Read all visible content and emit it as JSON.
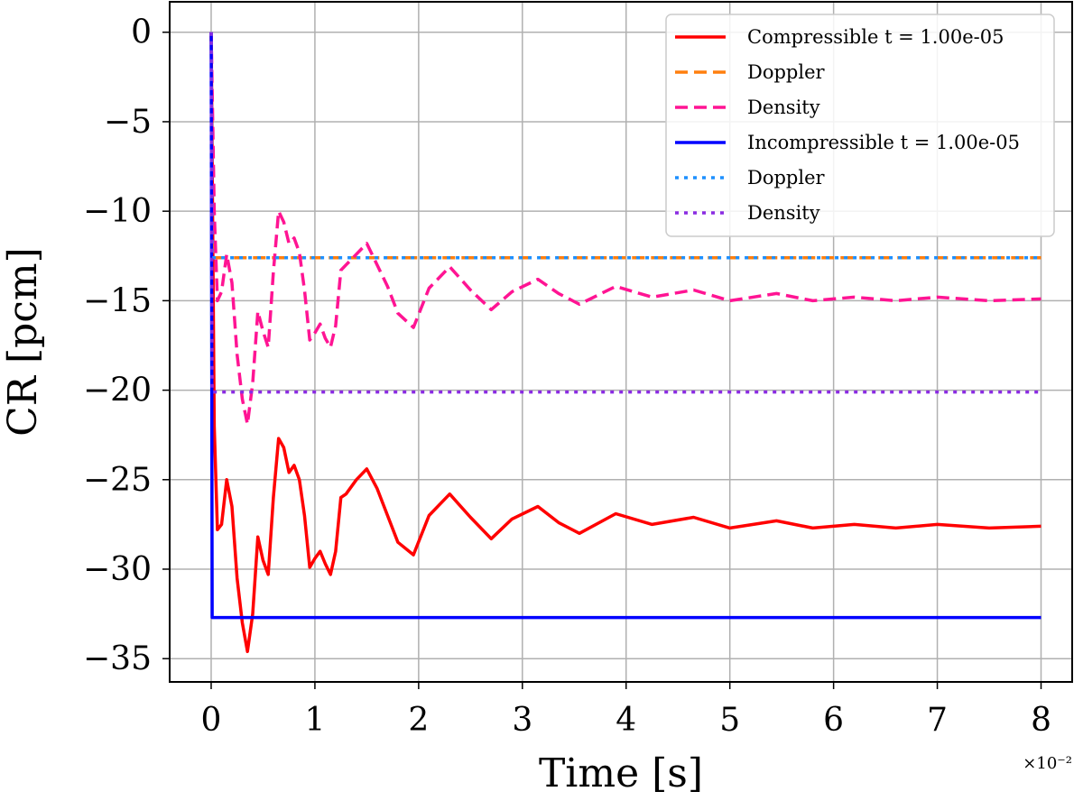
{
  "chart_data": {
    "type": "line",
    "title": "",
    "xlabel": "Time [s]",
    "ylabel": "CR [pcm]",
    "x_scale_note": "×10⁻²",
    "xlim": [
      -0.4,
      8.3
    ],
    "ylim": [
      -36.3,
      1.7
    ],
    "xticks": [
      0,
      1,
      2,
      3,
      4,
      5,
      6,
      7,
      8
    ],
    "xtick_labels": [
      "0",
      "1",
      "2",
      "3",
      "4",
      "5",
      "6",
      "7",
      "8"
    ],
    "yticks": [
      0,
      -5,
      -10,
      -15,
      -20,
      -25,
      -30,
      -35
    ],
    "ytick_labels": [
      "0",
      "−5",
      "−10",
      "−15",
      "−20",
      "−25",
      "−30",
      "−35"
    ],
    "grid": true,
    "legend_position": "top-right",
    "series": [
      {
        "name": "Compressible t = 1.00e-05",
        "color": "#ff0000",
        "style": "solid",
        "x": [
          0,
          0.03,
          0.06,
          0.1,
          0.15,
          0.2,
          0.25,
          0.3,
          0.35,
          0.4,
          0.45,
          0.5,
          0.55,
          0.6,
          0.65,
          0.7,
          0.75,
          0.8,
          0.85,
          0.9,
          0.95,
          1.0,
          1.05,
          1.1,
          1.15,
          1.2,
          1.25,
          1.3,
          1.4,
          1.5,
          1.6,
          1.7,
          1.8,
          1.95,
          2.1,
          2.3,
          2.5,
          2.7,
          2.9,
          3.15,
          3.35,
          3.55,
          3.9,
          4.25,
          4.65,
          5.0,
          5.45,
          5.8,
          6.2,
          6.6,
          7.0,
          7.5,
          8.0
        ],
        "y": [
          0,
          -22,
          -27.8,
          -27.5,
          -25.0,
          -26.5,
          -30.5,
          -33.0,
          -34.6,
          -32.5,
          -28.2,
          -29.5,
          -30.3,
          -26.0,
          -22.7,
          -23.2,
          -24.6,
          -24.2,
          -25.0,
          -27.0,
          -29.9,
          -29.4,
          -29.0,
          -29.7,
          -30.3,
          -29.0,
          -26.0,
          -25.8,
          -25.0,
          -24.4,
          -25.5,
          -27.0,
          -28.5,
          -29.2,
          -27.0,
          -25.8,
          -27.1,
          -28.3,
          -27.2,
          -26.5,
          -27.4,
          -28.0,
          -26.9,
          -27.5,
          -27.1,
          -27.7,
          -27.3,
          -27.7,
          -27.5,
          -27.7,
          -27.5,
          -27.7,
          -27.6
        ]
      },
      {
        "name": "Doppler",
        "color": "#ff7f0e",
        "style": "dashed",
        "x": [
          0,
          0.02,
          8.0
        ],
        "y": [
          0,
          -12.6,
          -12.6
        ]
      },
      {
        "name": "Density",
        "color": "#ff1493",
        "style": "dashed",
        "x": [
          0,
          0.03,
          0.06,
          0.1,
          0.15,
          0.2,
          0.25,
          0.3,
          0.35,
          0.4,
          0.45,
          0.5,
          0.55,
          0.6,
          0.65,
          0.7,
          0.75,
          0.8,
          0.85,
          0.9,
          0.95,
          1.0,
          1.05,
          1.1,
          1.15,
          1.2,
          1.25,
          1.3,
          1.4,
          1.5,
          1.6,
          1.7,
          1.8,
          1.95,
          2.1,
          2.3,
          2.5,
          2.7,
          2.9,
          3.15,
          3.35,
          3.55,
          3.9,
          4.25,
          4.65,
          5.0,
          5.45,
          5.8,
          6.2,
          6.6,
          7.0,
          7.5,
          8.0
        ],
        "y": [
          0,
          -10.0,
          -15.0,
          -14.5,
          -12.4,
          -14.0,
          -18.0,
          -20.5,
          -21.9,
          -19.6,
          -15.6,
          -16.7,
          -17.6,
          -13.4,
          -10.0,
          -10.6,
          -11.8,
          -11.5,
          -12.3,
          -14.4,
          -17.2,
          -16.8,
          -16.3,
          -17.1,
          -17.6,
          -16.4,
          -13.3,
          -13.0,
          -12.4,
          -11.8,
          -13.0,
          -14.2,
          -15.7,
          -16.5,
          -14.3,
          -13.1,
          -14.4,
          -15.5,
          -14.5,
          -13.8,
          -14.6,
          -15.2,
          -14.2,
          -14.8,
          -14.4,
          -15.0,
          -14.6,
          -15.0,
          -14.8,
          -15.0,
          -14.8,
          -15.0,
          -14.9
        ]
      },
      {
        "name": "Incompressible t = 1.00e-05",
        "color": "#0000ff",
        "style": "solid",
        "x": [
          0,
          0.01,
          8.0
        ],
        "y": [
          0,
          -32.7,
          -32.7
        ]
      },
      {
        "name": "Doppler",
        "color": "#1e90ff",
        "style": "dotted",
        "x": [
          0,
          0.01,
          8.0
        ],
        "y": [
          0,
          -12.6,
          -12.6
        ]
      },
      {
        "name": "Density",
        "color": "#8a2be2",
        "style": "dotted",
        "x": [
          0,
          0.01,
          8.0
        ],
        "y": [
          0,
          -20.1,
          -20.1
        ]
      }
    ]
  }
}
